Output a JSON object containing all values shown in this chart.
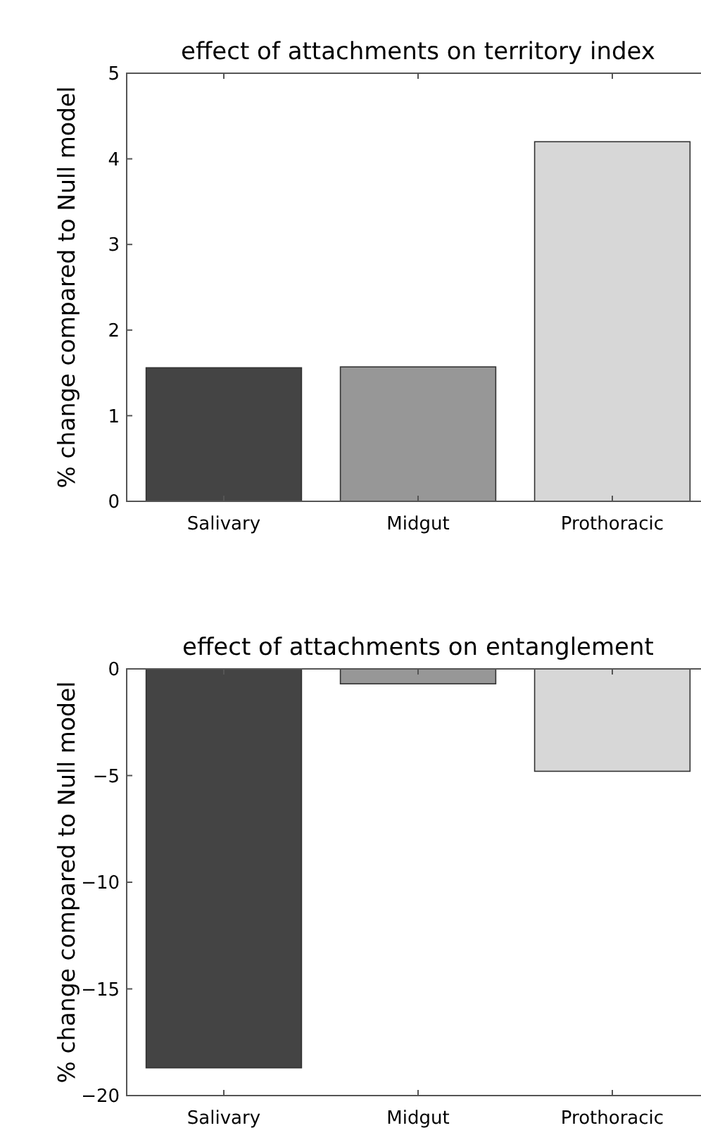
{
  "chart_data": [
    {
      "type": "bar",
      "title": "effect of attachments on territory index",
      "ylabel": "% change compared to Null model",
      "categories": [
        "Salivary",
        "Midgut",
        "Prothoracic"
      ],
      "values": [
        1.56,
        1.57,
        4.2
      ],
      "colors": [
        "#444444",
        "#979797",
        "#d7d7d7"
      ],
      "ylim": [
        0,
        5
      ],
      "yticks": [
        0,
        1,
        2,
        3,
        4,
        5
      ]
    },
    {
      "type": "bar",
      "title": "effect of attachments on entanglement",
      "ylabel": "% change compared to Null model",
      "categories": [
        "Salivary",
        "Midgut",
        "Prothoracic"
      ],
      "values": [
        -18.7,
        -0.7,
        -4.8
      ],
      "colors": [
        "#444444",
        "#979797",
        "#d7d7d7"
      ],
      "ylim": [
        -20,
        0
      ],
      "yticks": [
        {
          "value": -20,
          "label": "−20"
        },
        {
          "value": -15,
          "label": "−15"
        },
        {
          "value": -10,
          "label": "−10"
        },
        {
          "value": -5,
          "label": "−5"
        },
        0
      ]
    }
  ]
}
